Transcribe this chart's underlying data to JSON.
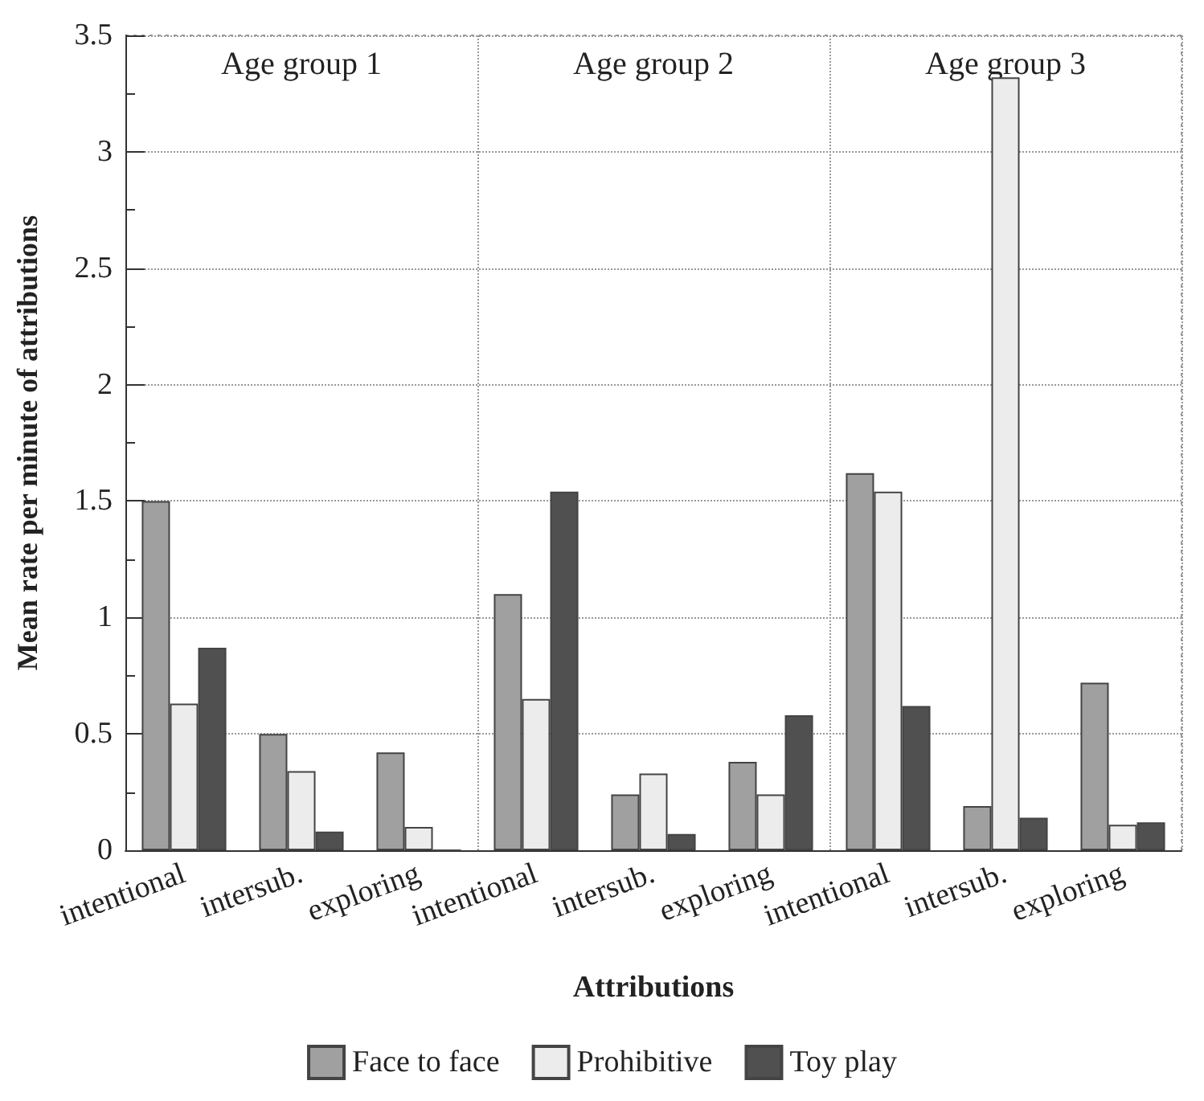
{
  "chart_data": {
    "type": "bar",
    "xlabel": "Attributions",
    "ylabel": "Mean rate per minute of attributions",
    "categories": [
      "intentional",
      "intersub.",
      "exploring",
      "intentional",
      "intersub.",
      "exploring",
      "intentional",
      "intersub.",
      "exploring"
    ],
    "series": [
      {
        "name": "Face to face",
        "color": "#a0a0a0",
        "values": [
          1.5,
          0.5,
          0.42,
          1.1,
          0.24,
          0.38,
          1.62,
          0.19,
          0.72
        ]
      },
      {
        "name": "Prohibitive",
        "color": "#ececec",
        "values": [
          0.63,
          0.34,
          0.1,
          0.65,
          0.33,
          0.24,
          1.54,
          3.32,
          0.11
        ]
      },
      {
        "name": "Toy play",
        "color": "#505050",
        "values": [
          0.87,
          0.08,
          0,
          1.54,
          0.07,
          0.58,
          0.62,
          0.14,
          0.12
        ]
      }
    ],
    "annotations": [
      "Age group 1",
      "Age group 2",
      "Age group 3"
    ],
    "ylim": [
      0,
      3.5
    ],
    "yticks": [
      0,
      0.5,
      1,
      1.5,
      2,
      2.5,
      3,
      3.5
    ],
    "grid": true,
    "legend": "bottom"
  }
}
